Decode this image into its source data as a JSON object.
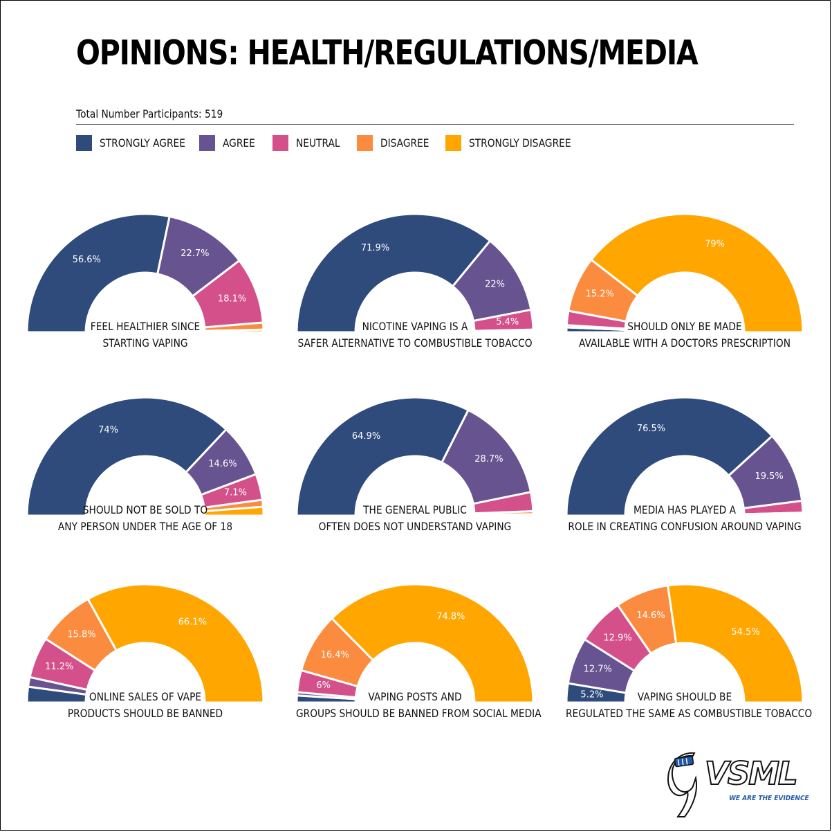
{
  "page": {
    "title": "OPINIONS: HEALTH/REGULATIONS/MEDIA",
    "participants": "Total Number Participants: 519"
  },
  "legend": [
    {
      "label": "STRONGLY AGREE",
      "color": "#2e4b7b"
    },
    {
      "label": "AGREE",
      "color": "#67538f"
    },
    {
      "label": "NEUTRAL",
      "color": "#d4508a"
    },
    {
      "label": "DISAGREE",
      "color": "#fb8b3f"
    },
    {
      "label": "STRONGLY DISAGREE",
      "color": "#ffa600"
    }
  ],
  "chart_data": [
    {
      "type": "pie",
      "subtype": "half-donut",
      "title_lines": [
        "FEEL HEALTHIER SINCE",
        "STARTING VAPING"
      ],
      "series": [
        "STRONGLY AGREE",
        "AGREE",
        "NEUTRAL",
        "DISAGREE",
        "STRONGLY DISAGREE"
      ],
      "values": [
        56.6,
        22.7,
        18.1,
        1.9,
        0.7
      ],
      "data_labels": [
        "56.6%",
        "22.7%",
        "18.1%",
        "",
        ""
      ]
    },
    {
      "type": "pie",
      "subtype": "half-donut",
      "title_lines": [
        "NICOTINE VAPING IS A",
        "SAFER ALTERNATIVE TO COMBUSTIBLE TOBACCO"
      ],
      "series": [
        "STRONGLY AGREE",
        "AGREE",
        "NEUTRAL",
        "DISAGREE",
        "STRONGLY DISAGREE"
      ],
      "values": [
        71.9,
        22.0,
        5.4,
        0.4,
        0.3
      ],
      "data_labels": [
        "71.9%",
        "22%",
        "5.4%",
        "",
        ""
      ]
    },
    {
      "type": "pie",
      "subtype": "half-donut",
      "title_lines": [
        "SHOULD ONLY BE MADE",
        "AVAILABLE WITH A DOCTORS PRESCRIPTION"
      ],
      "series": [
        "STRONGLY AGREE",
        "AGREE",
        "NEUTRAL",
        "DISAGREE",
        "STRONGLY DISAGREE"
      ],
      "values": [
        1.3,
        0.6,
        3.9,
        15.2,
        79.0
      ],
      "data_labels": [
        "",
        "",
        "",
        "15.2%",
        "79%"
      ]
    },
    {
      "type": "pie",
      "subtype": "half-donut",
      "title_lines": [
        "SHOULD NOT BE SOLD TO",
        "ANY PERSON UNDER THE AGE OF 18"
      ],
      "series": [
        "STRONGLY AGREE",
        "AGREE",
        "NEUTRAL",
        "DISAGREE",
        "STRONGLY DISAGREE"
      ],
      "values": [
        74.0,
        14.6,
        7.1,
        1.9,
        2.4
      ],
      "data_labels": [
        "74%",
        "14.6%",
        "7.1%",
        "",
        ""
      ]
    },
    {
      "type": "pie",
      "subtype": "half-donut",
      "title_lines": [
        "THE GENERAL PUBLIC",
        "OFTEN DOES NOT UNDERSTAND VAPING"
      ],
      "series": [
        "STRONGLY AGREE",
        "AGREE",
        "NEUTRAL",
        "DISAGREE",
        "STRONGLY DISAGREE"
      ],
      "values": [
        64.9,
        28.7,
        5.2,
        0.8,
        0.4
      ],
      "data_labels": [
        "64.9%",
        "28.7%",
        "",
        "",
        ""
      ]
    },
    {
      "type": "pie",
      "subtype": "half-donut",
      "title_lines": [
        "MEDIA HAS PLAYED A",
        "ROLE IN CREATING CONFUSION AROUND VAPING"
      ],
      "series": [
        "STRONGLY AGREE",
        "AGREE",
        "NEUTRAL",
        "DISAGREE",
        "STRONGLY DISAGREE"
      ],
      "values": [
        76.5,
        19.5,
        3.2,
        0.6,
        0.2
      ],
      "data_labels": [
        "76.5%",
        "19.5%",
        "",
        "",
        ""
      ]
    },
    {
      "type": "pie",
      "subtype": "half-donut",
      "title_lines": [
        "ONLINE SALES OF VAPE",
        "PRODUCTS SHOULD BE BANNED"
      ],
      "series": [
        "STRONGLY AGREE",
        "AGREE",
        "NEUTRAL",
        "DISAGREE",
        "STRONGLY DISAGREE"
      ],
      "values": [
        4.3,
        2.6,
        11.2,
        15.8,
        66.1
      ],
      "data_labels": [
        "",
        "",
        "11.2%",
        "15.8%",
        "66.1%"
      ]
    },
    {
      "type": "pie",
      "subtype": "half-donut",
      "title_lines": [
        "VAPING POSTS AND",
        "GROUPS SHOULD BE BANNED FROM SOCIAL MEDIA"
      ],
      "series": [
        "STRONGLY AGREE",
        "AGREE",
        "NEUTRAL",
        "DISAGREE",
        "STRONGLY DISAGREE"
      ],
      "values": [
        1.9,
        0.9,
        6.0,
        16.4,
        74.8
      ],
      "data_labels": [
        "",
        "",
        "6%",
        "16.4%",
        "74.8%"
      ]
    },
    {
      "type": "pie",
      "subtype": "half-donut",
      "title_lines": [
        "VAPING SHOULD BE",
        "REGULATED THE SAME AS COMBUSTIBLE TOBACCO"
      ],
      "series": [
        "STRONGLY AGREE",
        "AGREE",
        "NEUTRAL",
        "DISAGREE",
        "STRONGLY DISAGREE"
      ],
      "values": [
        5.2,
        12.7,
        12.9,
        14.6,
        54.5
      ],
      "data_labels": [
        "5.2%",
        "12.7%",
        "12.9%",
        "14.6%",
        "54.5%"
      ]
    }
  ],
  "logo": {
    "name": "VSML",
    "tagline": "WE ARE THE EVIDENCE"
  }
}
